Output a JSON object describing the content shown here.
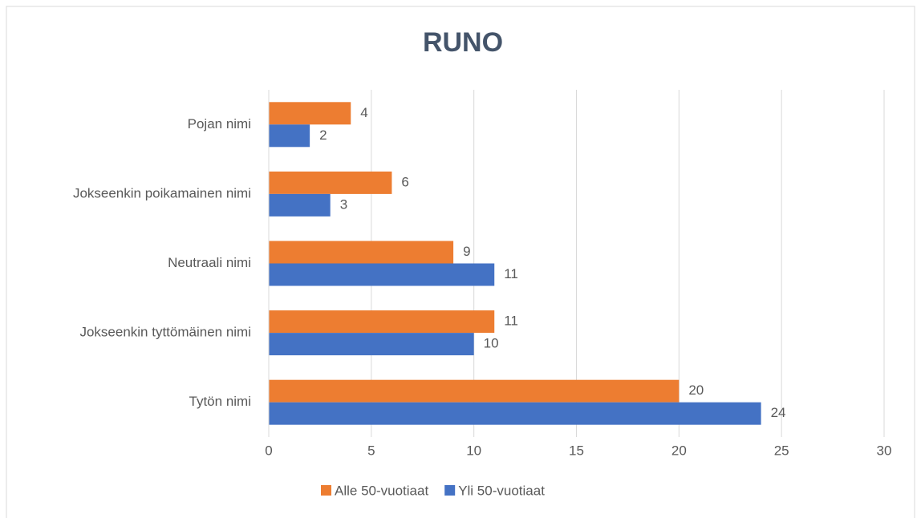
{
  "chart_data": {
    "type": "hbar",
    "title": "RUNO",
    "categories": [
      "Pojan nimi",
      "Jokseenkin poikamainen nimi",
      "Neutraali nimi",
      "Jokseenkin tyttömäinen nimi",
      "Tytön nimi"
    ],
    "series": [
      {
        "name": "Alle 50-vuotiaat",
        "color": "#ed7d31",
        "values": [
          4,
          6,
          9,
          11,
          20
        ]
      },
      {
        "name": "Yli 50-vuotiaat",
        "color": "#4472c4",
        "values": [
          2,
          3,
          11,
          10,
          24
        ]
      }
    ],
    "xlim": [
      0,
      30
    ],
    "xticks": [
      0,
      5,
      10,
      15,
      20,
      25,
      30
    ],
    "grid": true,
    "legend": "bottom"
  }
}
